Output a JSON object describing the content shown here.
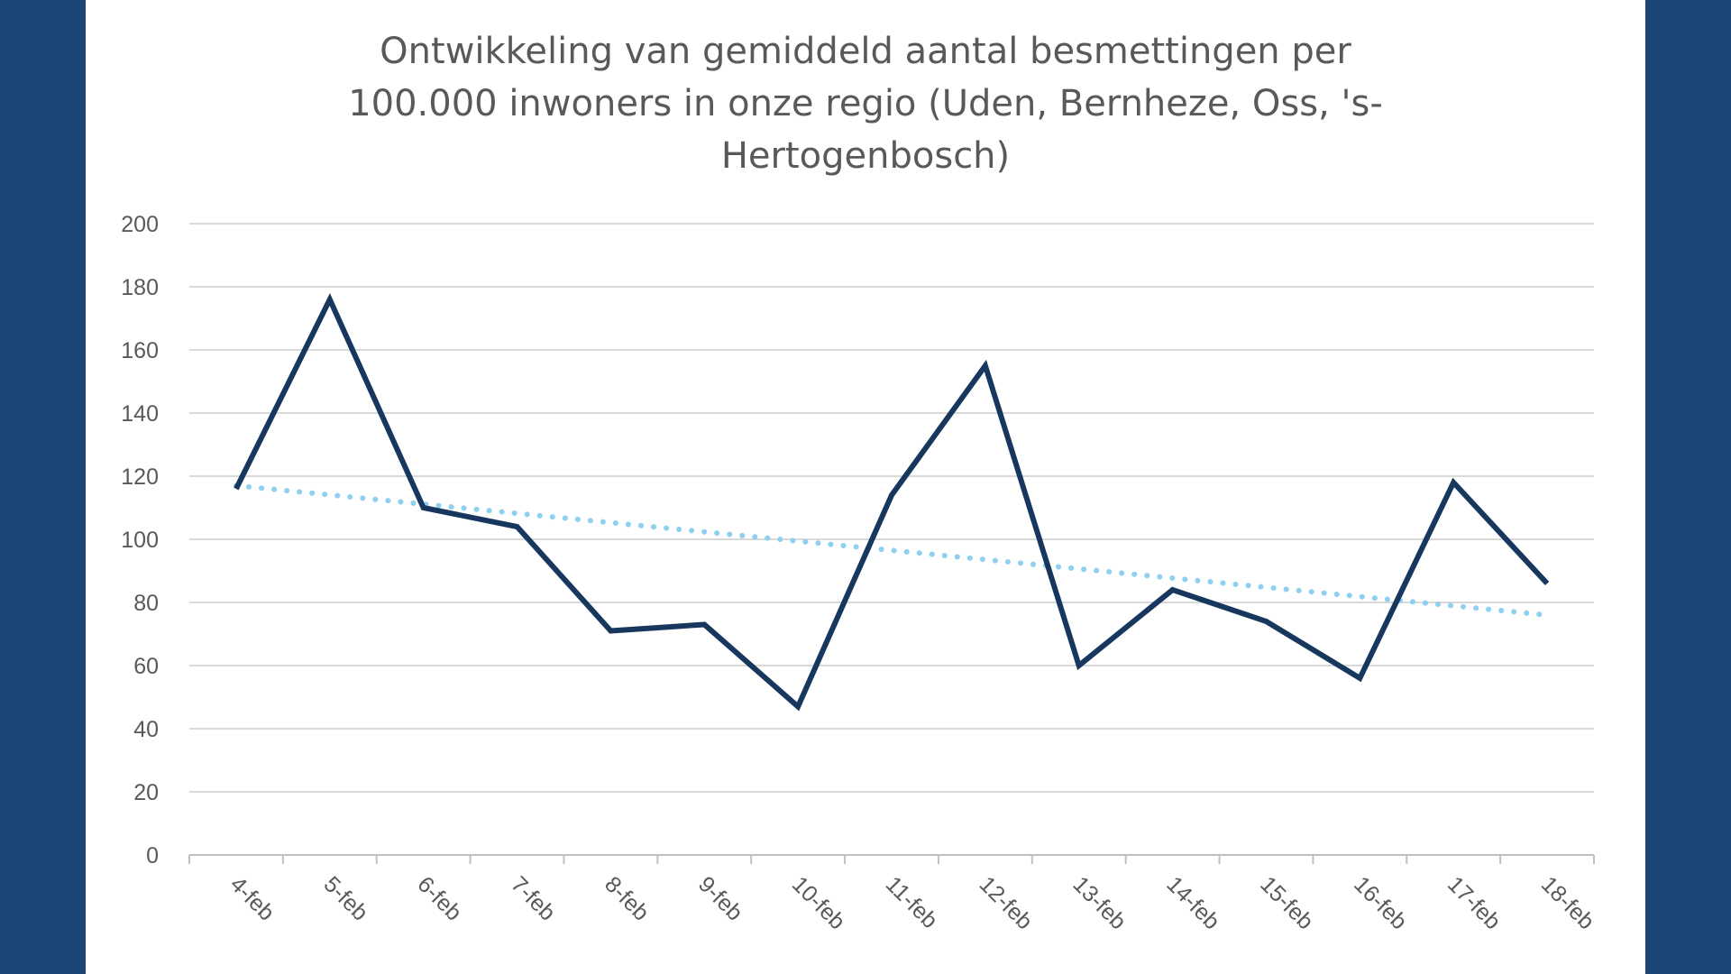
{
  "colors": {
    "background": "#1b4675",
    "panel": "#ffffff",
    "series": "#17375e",
    "trendline": "#8fd0f0",
    "grid": "#d9d9d9",
    "text": "#595959"
  },
  "chart_data": {
    "type": "line",
    "title": "Ontwikkeling van gemiddeld aantal besmettingen per 100.000 inwoners in onze regio (Uden, Bernheze, Oss, 's-Hertogenbosch)",
    "title_lines": [
      "Ontwikkeling van gemiddeld aantal besmettingen per",
      "100.000 inwoners in onze regio (Uden, Bernheze, Oss, 's-",
      "Hertogenbosch)"
    ],
    "xlabel": "",
    "ylabel": "",
    "categories": [
      "4-feb",
      "5-feb",
      "6-feb",
      "7-feb",
      "8-feb",
      "9-feb",
      "10-feb",
      "11-feb",
      "12-feb",
      "13-feb",
      "14-feb",
      "15-feb",
      "16-feb",
      "17-feb",
      "18-feb"
    ],
    "series": [
      {
        "values": [
          116,
          176,
          110,
          104,
          71,
          73,
          47,
          114,
          155,
          60,
          84,
          74,
          56,
          118,
          86
        ],
        "color": "#17375e",
        "style": "solid"
      }
    ],
    "trendline": {
      "type": "linear",
      "start": 117,
      "end": 76,
      "color": "#8fd0f0",
      "style": "dotted"
    },
    "ylim": [
      0,
      200
    ],
    "yticks": [
      0,
      20,
      40,
      60,
      80,
      100,
      120,
      140,
      160,
      180,
      200
    ],
    "grid": true,
    "legend": "none"
  }
}
